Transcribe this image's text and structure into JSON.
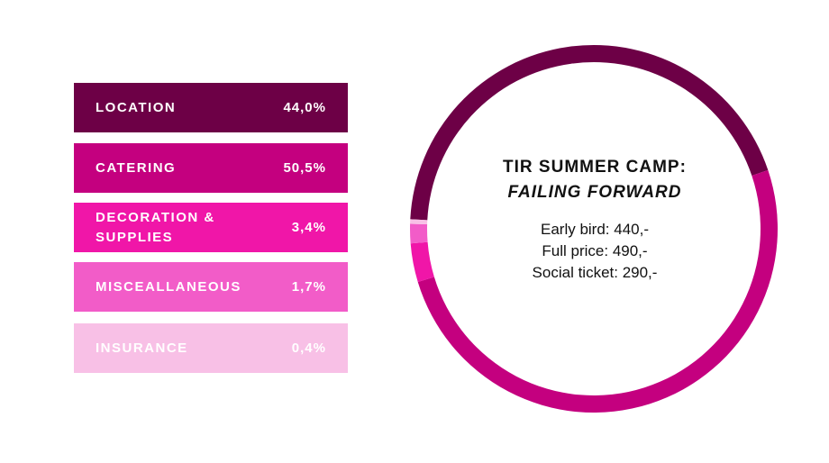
{
  "chart_data": {
    "type": "pie",
    "subtype": "donut",
    "title": "TIR SUMMER CAMP:",
    "subtitle": "FAILING FORWARD",
    "categories": [
      "LOCATION",
      "CATERING",
      "DECORATION & SUPPLIES",
      "MISCEALLANEOUS",
      "INSURANCE"
    ],
    "values": [
      44.0,
      50.5,
      3.4,
      1.7,
      0.4
    ],
    "value_labels": [
      "44,0%",
      "50,5%",
      "3,4%",
      "1,7%",
      "0,4%"
    ],
    "colors": [
      "#6d0046",
      "#c4007f",
      "#f016a8",
      "#f25cc8",
      "#f8c0e6"
    ],
    "annotations": [
      "Early bird: 440,-",
      "Full price: 490,-",
      "Social ticket: 290,-"
    ]
  }
}
